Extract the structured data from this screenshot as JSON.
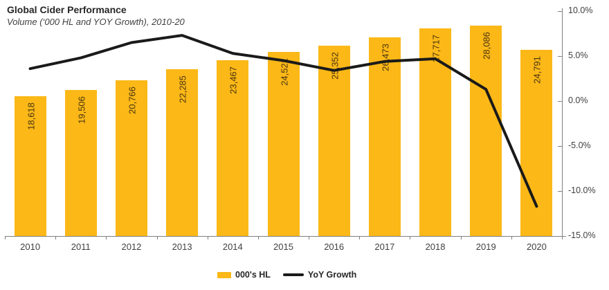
{
  "title": {
    "text": "Global Cider Performance",
    "subtitle": "Volume (‘000 HL and YOY Growth), 2010-20"
  },
  "legend": [
    {
      "label": "000's HL",
      "type": "bar",
      "color": "#FBB817"
    },
    {
      "label": "YoY Growth",
      "type": "line",
      "color": "#1A1A1A"
    }
  ],
  "chart_data": {
    "type": "combo",
    "title": "Global Cider Performance",
    "subtitle": "Volume (‘000 HL and YOY Growth), 2010-20",
    "categories": [
      "2010",
      "2011",
      "2012",
      "2013",
      "2014",
      "2015",
      "2016",
      "2017",
      "2018",
      "2019",
      "2020"
    ],
    "series": [
      {
        "name": "000's HL",
        "type": "bar",
        "color": "#FBB817",
        "values": [
          18618,
          19506,
          20766,
          22285,
          23467,
          24521,
          25352,
          26473,
          27717,
          28086,
          24791
        ],
        "labels": [
          "18,618",
          "19,506",
          "20,766",
          "22,285",
          "23,467",
          "24,521",
          "25,352",
          "26,473",
          "27,717",
          "28,086",
          "24,791"
        ]
      },
      {
        "name": "YoY Growth",
        "type": "line",
        "color": "#1A1A1A",
        "values": [
          3.6,
          4.8,
          6.5,
          7.3,
          5.3,
          4.5,
          3.4,
          4.4,
          4.7,
          1.3,
          -11.7
        ]
      }
    ],
    "left_axis": {
      "visible": false,
      "min": 0,
      "max": 30000
    },
    "right_axis": {
      "min": -15,
      "max": 10,
      "tick_step": 5,
      "tick_labels": [
        "10.0%",
        "5.0%",
        "0.0%",
        "-5.0%",
        "-10.0%",
        "-15.0%"
      ]
    },
    "grid": false,
    "legend_position": "bottom"
  }
}
